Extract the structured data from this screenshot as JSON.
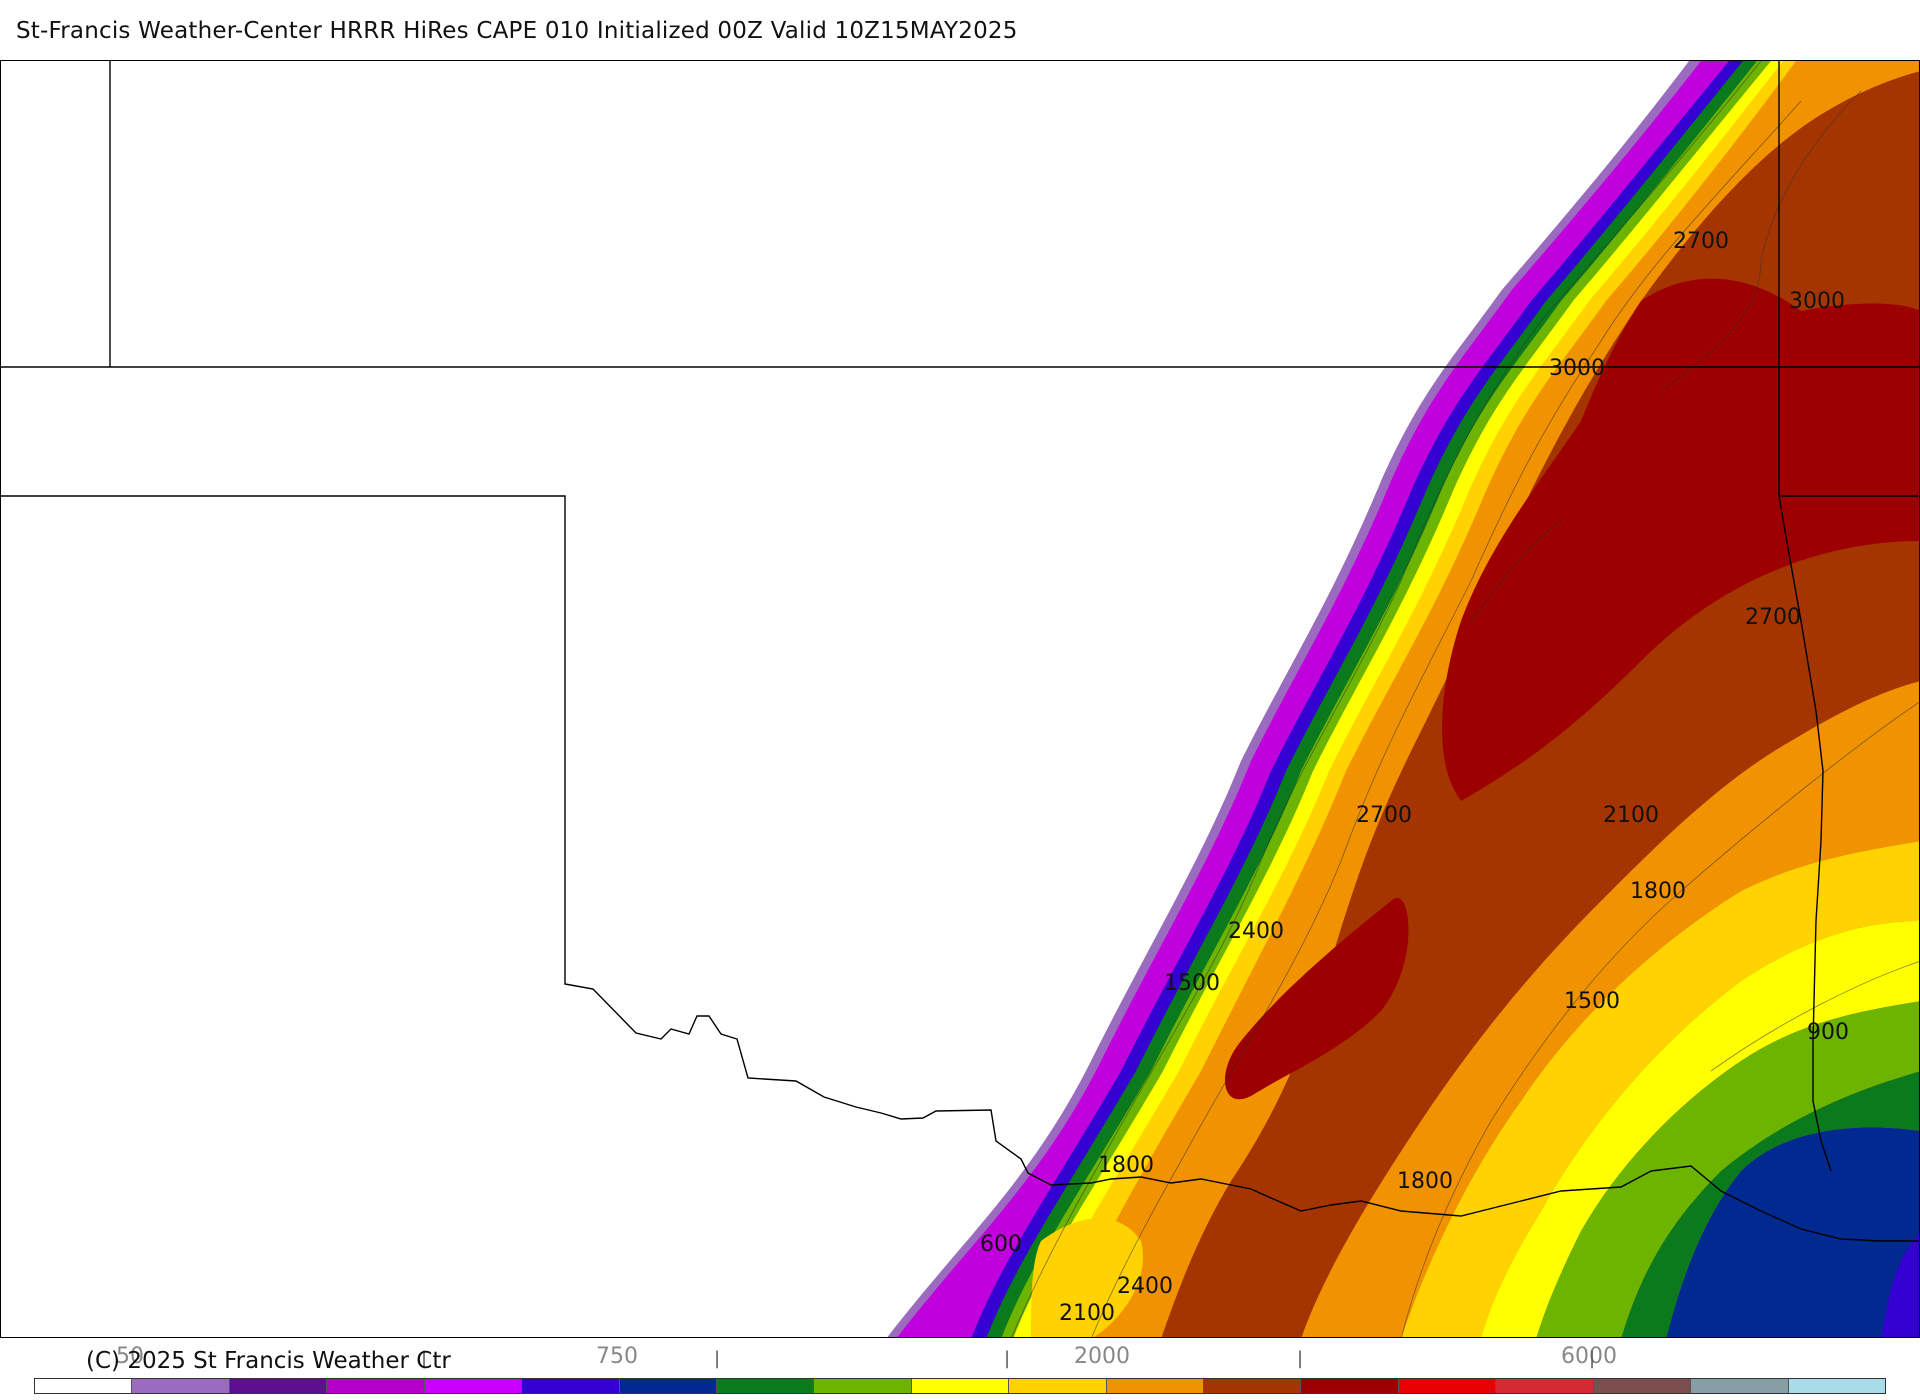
{
  "title": "St-Francis Weather-Center HRRR HiRes CAPE  010 Initialized  00Z Valid 10Z15MAY2025",
  "copyright": "(C) 2025 St Francis Weather Ctr",
  "map": {
    "variable": "CAPE",
    "contour_labels": [
      "2700",
      "3000",
      "3000",
      "2700",
      "2700",
      "2100",
      "1800",
      "2400",
      "1500",
      "1500",
      "900",
      "1800",
      "1800",
      "600",
      "2400",
      "2100"
    ]
  },
  "colorbar": {
    "colors": [
      "#ffffff",
      "#9b6bbf",
      "#5e0f8f",
      "#b400c8",
      "#c800ff",
      "#3500d2",
      "#002a8f",
      "#0a7a1c",
      "#6cb400",
      "#ffff00",
      "#ffd200",
      "#f19200",
      "#a53500",
      "#9c0000",
      "#e80000",
      "#d42a32",
      "#7b4f4f",
      "#889ea6",
      "#a8dce8"
    ],
    "tick_labels": [
      "50",
      "750",
      "2000",
      "6000"
    ]
  }
}
